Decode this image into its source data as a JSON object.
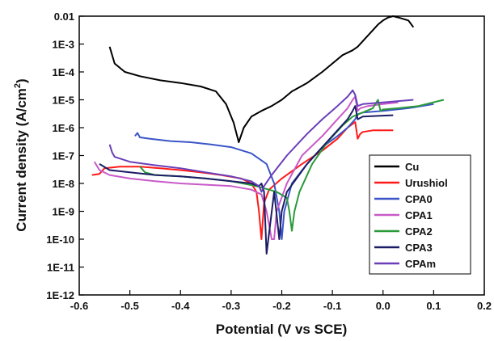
{
  "chart_data": {
    "type": "line",
    "xlabel": "Potential (V vs SCE)",
    "ylabel": "Current density (A/cm",
    "ylabel_sup": "2",
    "ylabel_end": ")",
    "xlim": [
      -0.6,
      0.2
    ],
    "ylim_log10": [
      -12,
      -2
    ],
    "y_scale": "log",
    "legend_position": "right",
    "x_ticks": [
      {
        "v": -0.6,
        "label": "-0.6"
      },
      {
        "v": -0.5,
        "label": "-0.5"
      },
      {
        "v": -0.4,
        "label": "-0.4"
      },
      {
        "v": -0.3,
        "label": "-0.3"
      },
      {
        "v": -0.2,
        "label": "-0.2"
      },
      {
        "v": -0.1,
        "label": "-0.1"
      },
      {
        "v": 0.0,
        "label": "0.0"
      },
      {
        "v": 0.1,
        "label": "0.1"
      },
      {
        "v": 0.2,
        "label": "0.2"
      }
    ],
    "y_ticks": [
      {
        "e": -2,
        "label": "0.01"
      },
      {
        "e": -3,
        "label": "1E-3"
      },
      {
        "e": -4,
        "label": "1E-4"
      },
      {
        "e": -5,
        "label": "1E-5"
      },
      {
        "e": -6,
        "label": "1E-6"
      },
      {
        "e": -7,
        "label": "1E-7"
      },
      {
        "e": -8,
        "label": "1E-8"
      },
      {
        "e": -9,
        "label": "1E-9"
      },
      {
        "e": -10,
        "label": "1E-10"
      },
      {
        "e": -11,
        "label": "1E-11"
      },
      {
        "e": -12,
        "label": "1E-12"
      }
    ],
    "series": [
      {
        "name": "Cu",
        "color": "#000000",
        "x": [
          -0.54,
          -0.53,
          -0.51,
          -0.48,
          -0.44,
          -0.4,
          -0.36,
          -0.33,
          -0.31,
          -0.295,
          -0.285,
          -0.275,
          -0.26,
          -0.24,
          -0.22,
          -0.2,
          -0.18,
          -0.15,
          -0.12,
          -0.1,
          -0.08,
          -0.06,
          -0.05,
          -0.03,
          -0.01,
          0.0,
          0.01,
          0.02,
          0.03,
          0.05,
          0.06
        ],
        "y": [
          0.0008,
          0.0002,
          0.0001,
          7e-05,
          5e-05,
          4e-05,
          3e-05,
          2e-05,
          7e-06,
          1.5e-06,
          3e-07,
          1e-06,
          2.5e-06,
          4e-06,
          6e-06,
          1e-05,
          2e-05,
          4e-05,
          0.0001,
          0.0002,
          0.0004,
          0.0006,
          0.0008,
          0.002,
          0.005,
          0.007,
          0.009,
          0.01,
          0.009,
          0.007,
          0.004
        ]
      },
      {
        "name": "Urushiol",
        "color": "#ff1a1a",
        "x": [
          -0.575,
          -0.56,
          -0.55,
          -0.52,
          -0.48,
          -0.44,
          -0.4,
          -0.36,
          -0.32,
          -0.28,
          -0.26,
          -0.25,
          -0.245,
          -0.24,
          -0.235,
          -0.225,
          -0.2,
          -0.16,
          -0.12,
          -0.09,
          -0.07,
          -0.055,
          -0.05,
          -0.045,
          -0.04,
          -0.02,
          0.0,
          0.02
        ],
        "y": [
          2e-08,
          2.2e-08,
          3.5e-08,
          4e-08,
          4e-08,
          3.5e-08,
          3e-08,
          2.5e-08,
          2e-08,
          1.5e-08,
          1e-08,
          5e-09,
          1e-09,
          1e-10,
          2e-09,
          6e-09,
          1.5e-08,
          5e-08,
          1.5e-07,
          4e-07,
          1e-06,
          1.6e-06,
          4e-07,
          6e-07,
          7e-07,
          8e-07,
          8e-07,
          8e-07
        ]
      },
      {
        "name": "CPA0",
        "color": "#3a55c8",
        "x": [
          -0.49,
          -0.485,
          -0.48,
          -0.46,
          -0.42,
          -0.38,
          -0.34,
          -0.3,
          -0.26,
          -0.23,
          -0.215,
          -0.205,
          -0.2,
          -0.195,
          -0.18,
          -0.15,
          -0.12,
          -0.09,
          -0.07,
          -0.055,
          -0.05,
          -0.04,
          0.0,
          0.05,
          0.1
        ],
        "y": [
          5e-07,
          6.5e-07,
          4.5e-07,
          4e-07,
          3.3e-07,
          3e-07,
          2.5e-07,
          2e-07,
          1.2e-07,
          5e-08,
          1e-08,
          1e-09,
          1e-10,
          1e-09,
          1e-08,
          5e-08,
          2e-07,
          5e-07,
          1e-06,
          2e-06,
          3e-06,
          3.5e-06,
          4e-06,
          5e-06,
          7e-06
        ]
      },
      {
        "name": "CPA1",
        "color": "#c85ac8",
        "x": [
          -0.57,
          -0.56,
          -0.54,
          -0.5,
          -0.45,
          -0.4,
          -0.35,
          -0.3,
          -0.26,
          -0.24,
          -0.23,
          -0.22,
          -0.215,
          -0.21,
          -0.19,
          -0.16,
          -0.12,
          -0.09,
          -0.07,
          -0.06,
          -0.055,
          -0.05,
          -0.045,
          -0.03,
          0.0,
          0.03
        ],
        "y": [
          6e-08,
          3e-08,
          2e-08,
          1.5e-08,
          1.2e-08,
          1e-08,
          9e-09,
          8e-09,
          6e-09,
          4e-09,
          1e-09,
          1e-10,
          1e-10,
          1e-09,
          1e-08,
          1e-07,
          5e-07,
          2e-06,
          5e-06,
          1e-05,
          1.3e-05,
          4e-06,
          5e-06,
          6e-06,
          7e-06,
          8e-06
        ]
      },
      {
        "name": "CPA2",
        "color": "#2a9a3a",
        "x": [
          -0.48,
          -0.47,
          -0.45,
          -0.4,
          -0.35,
          -0.3,
          -0.25,
          -0.21,
          -0.19,
          -0.185,
          -0.18,
          -0.175,
          -0.165,
          -0.14,
          -0.11,
          -0.08,
          -0.06,
          -0.04,
          -0.02,
          -0.01,
          -0.005,
          0.0,
          0.03,
          0.07,
          0.12
        ],
        "y": [
          4e-08,
          2.5e-08,
          2e-08,
          1.8e-08,
          1.5e-08,
          1.2e-08,
          8e-09,
          5e-09,
          3e-09,
          1e-09,
          2e-10,
          1e-09,
          5e-09,
          5e-08,
          3e-07,
          1.2e-06,
          2.5e-06,
          3.5e-06,
          5e-06,
          1e-05,
          4e-06,
          4.5e-06,
          5e-06,
          6e-06,
          1e-05
        ]
      },
      {
        "name": "CPA3",
        "color": "#1c1c66",
        "x": [
          -0.56,
          -0.54,
          -0.5,
          -0.45,
          -0.4,
          -0.35,
          -0.3,
          -0.26,
          -0.245,
          -0.24,
          -0.235,
          -0.23,
          -0.215,
          -0.205,
          -0.2,
          -0.19,
          -0.15,
          -0.12,
          -0.09,
          -0.07,
          -0.06,
          -0.055,
          -0.05,
          -0.04,
          0.0,
          0.02
        ],
        "y": [
          5e-08,
          3e-08,
          2.5e-08,
          2e-08,
          1.8e-08,
          1.5e-08,
          1.2e-08,
          1e-08,
          8e-09,
          1e-08,
          5e-09,
          3e-11,
          5e-09,
          1e-10,
          1e-09,
          5e-09,
          5e-08,
          2e-07,
          8e-07,
          2e-06,
          4e-06,
          6e-06,
          2e-06,
          2.5e-06,
          2.7e-06,
          2.8e-06
        ]
      },
      {
        "name": "CPAm",
        "color": "#6a3fb8",
        "x": [
          -0.54,
          -0.535,
          -0.53,
          -0.5,
          -0.45,
          -0.4,
          -0.35,
          -0.3,
          -0.26,
          -0.245,
          -0.24,
          -0.235,
          -0.22,
          -0.19,
          -0.15,
          -0.12,
          -0.09,
          -0.07,
          -0.06,
          -0.055,
          -0.05,
          -0.04,
          0.0,
          0.03,
          0.06
        ],
        "y": [
          2.5e-07,
          1.3e-07,
          9e-08,
          6e-08,
          4.5e-08,
          3.5e-08,
          2.5e-08,
          1.8e-08,
          1.2e-08,
          8e-09,
          5e-09,
          8e-09,
          2e-08,
          1e-07,
          6e-07,
          2e-06,
          6e-06,
          1.3e-05,
          2.2e-05,
          1.5e-05,
          6e-06,
          7e-06,
          8e-06,
          9e-06,
          1e-05
        ]
      }
    ]
  }
}
